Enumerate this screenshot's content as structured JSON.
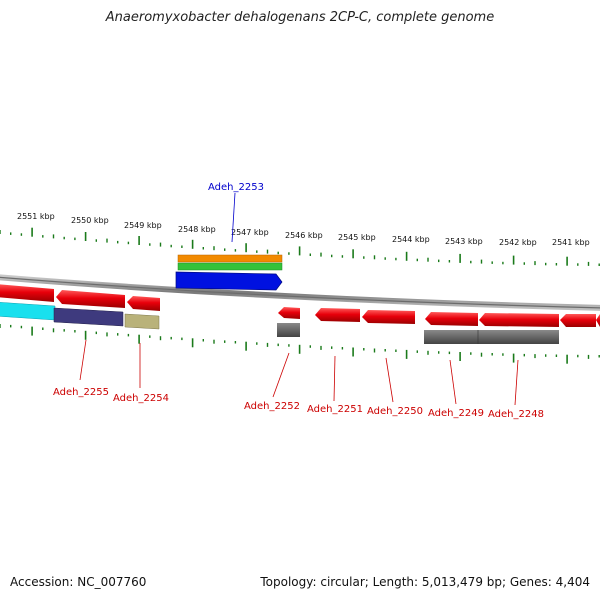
{
  "title": "Anaeromyxobacter dehalogenans 2CP-C, complete genome",
  "footer": {
    "accession": "Accession: NC_007760",
    "topology": "Topology: circular; Length: 5,013,479 bp; Genes: 4,404"
  },
  "kbp_labels": [
    "2551 kbp",
    "2550 kbp",
    "2549 kbp",
    "2548 kbp",
    "2547 kbp",
    "2546 kbp",
    "2545 kbp",
    "2544 kbp",
    "2543 kbp",
    "2542 kbp",
    "2541 kbp"
  ],
  "gene_labels": {
    "top": "Adeh_2253",
    "bottom": [
      "Adeh_2255",
      "Adeh_2254",
      "Adeh_2252",
      "Adeh_2251",
      "Adeh_2250",
      "Adeh_2249",
      "Adeh_2248"
    ]
  },
  "colors": {
    "gene": "#e8000b",
    "label_red": "#cc0000",
    "label_blue": "#0000cc",
    "tick": "#1a7a1a",
    "backbone": "#808080"
  }
}
